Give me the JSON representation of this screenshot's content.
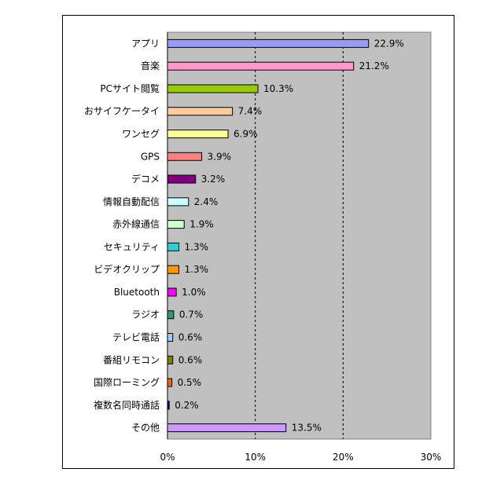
{
  "chart_data": {
    "type": "bar",
    "orientation": "horizontal",
    "categories": [
      "アプリ",
      "音楽",
      "PCサイト閲覧",
      "おサイフケータイ",
      "ワンセグ",
      "GPS",
      "デコメ",
      "情報自動配信",
      "赤外線通信",
      "セキュリティ",
      "ビデオクリップ",
      "Bluetooth",
      "ラジオ",
      "テレビ電話",
      "番組リモコン",
      "国際ローミング",
      "複数名同時通話",
      "その他"
    ],
    "values": [
      22.9,
      21.2,
      10.3,
      7.4,
      6.9,
      3.9,
      3.2,
      2.4,
      1.9,
      1.3,
      1.3,
      1.0,
      0.7,
      0.6,
      0.6,
      0.5,
      0.2,
      13.5
    ],
    "value_labels": [
      "22.9%",
      "21.2%",
      "10.3%",
      "7.4%",
      "6.9%",
      "3.9%",
      "3.2%",
      "2.4%",
      "1.9%",
      "1.3%",
      "1.3%",
      "1.0%",
      "0.7%",
      "0.6%",
      "0.6%",
      "0.5%",
      "0.2%",
      "13.5%"
    ],
    "colors": [
      "#9999ff",
      "#ff99cc",
      "#99cc00",
      "#ffcc99",
      "#ffff99",
      "#ff8080",
      "#800080",
      "#ccffff",
      "#ccffcc",
      "#33cccc",
      "#ff9900",
      "#ff00ff",
      "#339966",
      "#99ccff",
      "#808000",
      "#ff6600",
      "#000080",
      "#cc99ff"
    ],
    "xlim": [
      0,
      30
    ],
    "xticks": [
      "0%",
      "10%",
      "20%",
      "30%"
    ],
    "plot_background": "#c0c0c0",
    "grid": "vertical dashed",
    "title": "",
    "xlabel": "",
    "ylabel": ""
  }
}
